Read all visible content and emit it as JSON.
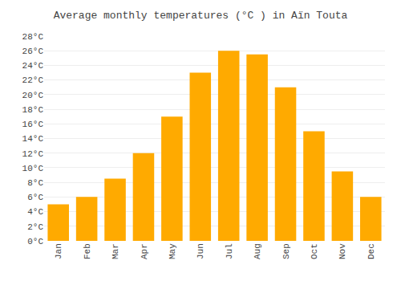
{
  "chart_data": {
    "type": "bar",
    "title": "Average monthly temperatures (°C ) in Aïn Touta",
    "categories": [
      "Jan",
      "Feb",
      "Mar",
      "Apr",
      "May",
      "Jun",
      "Jul",
      "Aug",
      "Sep",
      "Oct",
      "Nov",
      "Dec"
    ],
    "values": [
      5,
      6,
      8.5,
      12,
      17,
      23,
      26,
      25.5,
      21,
      15,
      9.5,
      6
    ],
    "color": "#FFAA00",
    "ylim": [
      0,
      28
    ],
    "yticks": [
      {
        "value": 0,
        "label": "0°C"
      },
      {
        "value": 2,
        "label": "2°C"
      },
      {
        "value": 4,
        "label": "4°C"
      },
      {
        "value": 6,
        "label": "6°C"
      },
      {
        "value": 8,
        "label": "8°C"
      },
      {
        "value": 10,
        "label": "10°C"
      },
      {
        "value": 12,
        "label": "12°C"
      },
      {
        "value": 14,
        "label": "14°C"
      },
      {
        "value": 16,
        "label": "16°C"
      },
      {
        "value": 18,
        "label": "18°C"
      },
      {
        "value": 20,
        "label": "20°C"
      },
      {
        "value": 22,
        "label": "22°C"
      },
      {
        "value": 24,
        "label": "24°C"
      },
      {
        "value": 26,
        "label": "26°C"
      },
      {
        "value": 28,
        "label": "28°C"
      }
    ],
    "grid": true
  }
}
